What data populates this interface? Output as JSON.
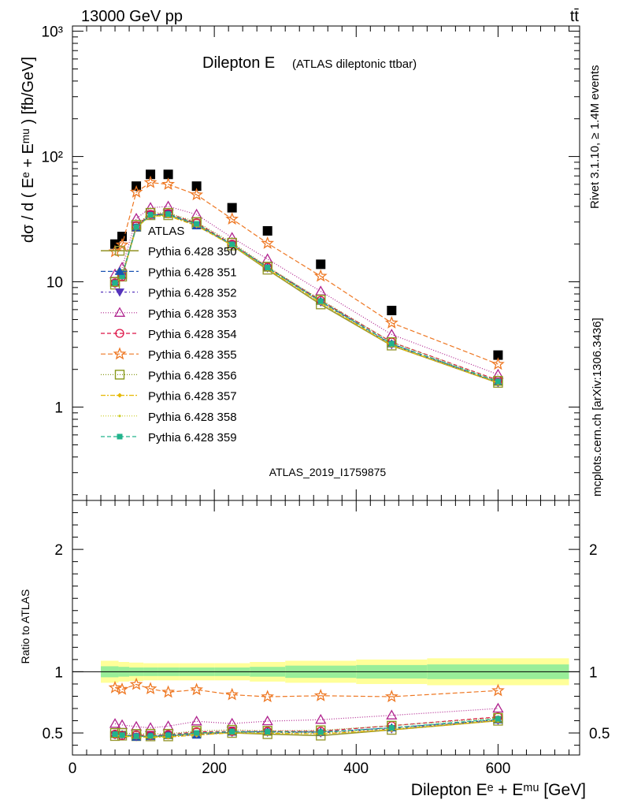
{
  "header": {
    "left": "13000 GeV pp",
    "right": "tt̄"
  },
  "title": {
    "main": "Dilepton E",
    "sub": "(ATLAS dileptonic ttbar)"
  },
  "side": {
    "rivet": "Rivet 3.1.10, ≥ 1.4M events",
    "mcplots": "mcplots.cern.ch [arXiv:1306.3436]"
  },
  "watermark": "ATLAS_2019_I1759875",
  "ylabel_main": "dσ / d ( Eᵉ + Eᵐᵘ ) [fb/GeV]",
  "ylabel_ratio": "Ratio to ATLAS",
  "xlabel": "Dilepton Eᵉ + Eᵐᵘ [GeV]",
  "chart_data": {
    "type": "line",
    "x": [
      60,
      70,
      90,
      110,
      135,
      175,
      225,
      275,
      350,
      450,
      600
    ],
    "bins": [
      [
        40,
        65
      ],
      [
        65,
        80
      ],
      [
        80,
        100
      ],
      [
        100,
        120
      ],
      [
        120,
        150
      ],
      [
        150,
        200
      ],
      [
        200,
        250
      ],
      [
        250,
        300
      ],
      [
        300,
        400
      ],
      [
        400,
        500
      ],
      [
        500,
        700
      ]
    ],
    "xlim": [
      0,
      715
    ],
    "ylim_main": [
      0.18,
      1100
    ],
    "ylim_ratio": [
      0.32,
      2.4
    ],
    "yscale_main": "log",
    "main_ticks": [
      "1",
      "10",
      "10²",
      "10³"
    ],
    "ratio_ticks": [
      "0.5",
      "1",
      "2"
    ],
    "x_ticks": [
      "0",
      "200",
      "400",
      "600"
    ],
    "band_inner": [
      0.045,
      0.04,
      0.035,
      0.035,
      0.035,
      0.035,
      0.035,
      0.04,
      0.05,
      0.055,
      0.06
    ],
    "band_outer": [
      0.09,
      0.08,
      0.075,
      0.07,
      0.07,
      0.07,
      0.07,
      0.08,
      0.09,
      0.1,
      0.11
    ],
    "series": [
      {
        "name": "ATLAS",
        "color": "#000000",
        "marker": "square",
        "dash": "",
        "values": [
          20,
          23,
          58,
          72,
          72,
          58,
          39,
          25.5,
          13.8,
          5.9,
          2.6
        ]
      },
      {
        "name": "Pythia 6.428 350",
        "color": "#999933",
        "marker": "square-open",
        "dash": "",
        "values": [
          9.5,
          11,
          27.5,
          34,
          34,
          29,
          19.5,
          12.5,
          6.6,
          3.1,
          1.56
        ]
      },
      {
        "name": "Pythia 6.428 351",
        "color": "#1a53b3",
        "marker": "triangle-up",
        "dash": "6,3",
        "values": [
          9.8,
          11.2,
          27,
          34,
          34.5,
          28,
          19.8,
          13,
          7,
          3.2,
          1.58
        ]
      },
      {
        "name": "Pythia 6.428 352",
        "color": "#5533bb",
        "marker": "triangle-down",
        "dash": "3,3,1,3",
        "values": [
          9.7,
          11.1,
          27.3,
          34.3,
          34.8,
          28.5,
          19.7,
          12.9,
          6.9,
          3.15,
          1.57
        ]
      },
      {
        "name": "Pythia 6.428 353",
        "color": "#b0238e",
        "marker": "triangle-open",
        "dash": "1,2",
        "values": [
          11.5,
          13,
          32,
          39,
          40,
          34.5,
          22.5,
          15.2,
          8.4,
          3.8,
          1.82
        ]
      },
      {
        "name": "Pythia 6.428 354",
        "color": "#dd1144",
        "marker": "circle-open",
        "dash": "5,3",
        "values": [
          9.8,
          11,
          28,
          34.5,
          35,
          29.5,
          20,
          13.1,
          7.1,
          3.3,
          1.64
        ]
      },
      {
        "name": "Pythia 6.428 355",
        "color": "#ee7722",
        "marker": "star",
        "dash": "6,3",
        "values": [
          17.4,
          19.7,
          52,
          62,
          60,
          49.5,
          31.7,
          20.3,
          11.1,
          4.7,
          2.2
        ]
      },
      {
        "name": "Pythia 6.428 356",
        "color": "#88991a",
        "marker": "square-open",
        "dash": "1,2",
        "values": [
          10,
          11.5,
          28.5,
          35.5,
          35.5,
          30,
          20.5,
          13.2,
          7.2,
          3.3,
          1.62
        ]
      },
      {
        "name": "Pythia 6.428 357",
        "color": "#e6b800",
        "marker": "small",
        "dash": "6,2,2,2",
        "values": [
          9.6,
          10.9,
          27,
          33.5,
          33.5,
          28,
          19.5,
          12.7,
          6.8,
          3.1,
          1.56
        ]
      },
      {
        "name": "Pythia 6.428 358",
        "color": "#cccc22",
        "marker": "dot",
        "dash": "1,2",
        "values": [
          9.7,
          11,
          27.2,
          33.8,
          34,
          28.6,
          19.6,
          12.8,
          6.9,
          3.15,
          1.58
        ]
      },
      {
        "name": "Pythia 6.428 359",
        "color": "#22b38c",
        "marker": "square-filled",
        "dash": "5,3",
        "values": [
          9.8,
          11.1,
          27.4,
          34.2,
          34.7,
          29,
          19.9,
          13,
          7,
          3.2,
          1.6
        ]
      }
    ]
  }
}
